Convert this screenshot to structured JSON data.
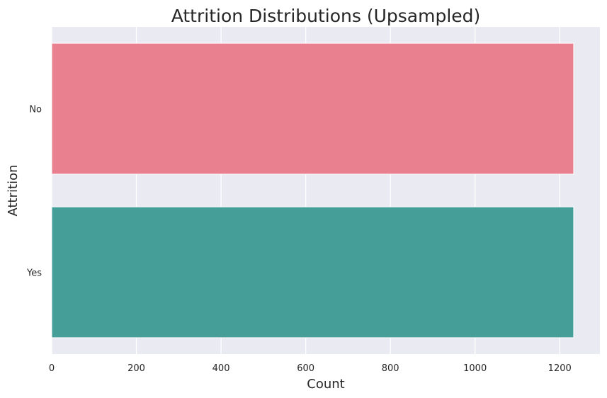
{
  "chart_data": {
    "type": "bar",
    "orientation": "horizontal",
    "title": "Attrition Distributions (Upsampled)",
    "xlabel": "Count",
    "ylabel": "Attrition",
    "categories": [
      "No",
      "Yes"
    ],
    "values": [
      1233,
      1233
    ],
    "bar_colors": [
      "#e88090",
      "#469e98"
    ],
    "xlim": [
      0,
      1295
    ],
    "xticks": [
      0,
      200,
      400,
      600,
      800,
      1000,
      1200
    ],
    "grid": true,
    "background": "#eaeaf2",
    "gridline_color": "#ffffff"
  }
}
